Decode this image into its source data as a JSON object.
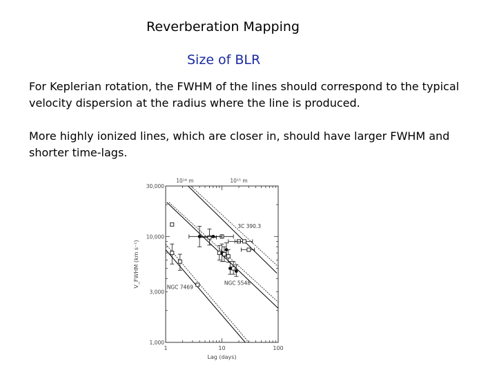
{
  "slide": {
    "title": "Reverberation Mapping",
    "subtitle": "Size of BLR",
    "paragraphs": [
      "For Keplerian rotation, the FWHM of the lines should correspond to the typical velocity dispersion at the radius where the line is produced.",
      "More highly ionized lines, which are closer in, should have larger FWHM and shorter time-lags."
    ]
  },
  "chart_data": {
    "type": "scatter",
    "xlabel": "Lag (days)",
    "ylabel": "V_FWHM (km s⁻¹)",
    "xscale": "log",
    "yscale": "log",
    "xlim": [
      1,
      100
    ],
    "ylim": [
      1000,
      30000
    ],
    "x_ticks": [
      "1",
      "10",
      "100"
    ],
    "y_ticks": [
      "1,000",
      "3,000",
      "10,000",
      "30,000"
    ],
    "top_axis_labels": [
      "10¹⁴ m",
      "10¹⁵ m"
    ],
    "annotations": [
      "3C 390.3",
      "NGC 5548",
      "NGC 7469"
    ],
    "series": [
      {
        "name": "3C 390.3",
        "marker": "open-square",
        "points": [
          {
            "x": 10,
            "y": 10000,
            "xerr": [
              4,
              6
            ]
          },
          {
            "x": 20,
            "y": 9000,
            "xerr": [
              7,
              6
            ]
          },
          {
            "x": 25,
            "y": 9000,
            "xerr": [
              8,
              10
            ]
          },
          {
            "x": 30,
            "y": 7500,
            "xerr": [
              8,
              8
            ]
          }
        ]
      },
      {
        "name": "NGC 5548",
        "marker": "mixed",
        "points": [
          {
            "x": 4,
            "y": 10000,
            "yerr": [
              2000,
              2500
            ],
            "xerr": [
              1.4,
              2
            ]
          },
          {
            "x": 6,
            "y": 9800,
            "yerr": [
              1500,
              2000
            ],
            "xerr": [
              2,
              2
            ]
          },
          {
            "x": 7,
            "y": 10000,
            "xerr": [
              3,
              3
            ]
          },
          {
            "x": 9,
            "y": 7000,
            "yerr": [
              1000,
              1200
            ]
          },
          {
            "x": 10,
            "y": 7000,
            "yerr": [
              1200,
              1500
            ]
          },
          {
            "x": 11,
            "y": 6800,
            "yerr": [
              1000,
              1200
            ]
          },
          {
            "x": 12,
            "y": 7500,
            "yerr": [
              1000,
              1200
            ]
          },
          {
            "x": 13,
            "y": 6500,
            "yerr": [
              800,
              1000
            ]
          },
          {
            "x": 14,
            "y": 5000,
            "yerr": [
              600,
              800
            ]
          },
          {
            "x": 16,
            "y": 5000,
            "yerr": [
              600,
              800
            ]
          },
          {
            "x": 18,
            "y": 4700,
            "yerr": [
              500,
              700
            ]
          }
        ]
      },
      {
        "name": "NGC 7469",
        "marker": "open-square",
        "points": [
          {
            "x": 1.3,
            "y": 13000
          },
          {
            "x": 1.3,
            "y": 7000,
            "yerr": [
              1500,
              1500
            ]
          },
          {
            "x": 1.8,
            "y": 5800,
            "yerr": [
              1000,
              1000
            ]
          },
          {
            "x": 3.7,
            "y": 3500
          }
        ]
      }
    ],
    "fit_lines": [
      {
        "name": "3C 390.3 line",
        "points": [
          [
            2.5,
            30000
          ],
          [
            95,
            4500
          ]
        ]
      },
      {
        "name": "3C 390.3 dashed",
        "points": [
          [
            2.8,
            30000
          ],
          [
            100,
            5200
          ]
        ]
      },
      {
        "name": "NGC 5548 line",
        "points": [
          [
            1.05,
            21000
          ],
          [
            100,
            2100
          ]
        ]
      },
      {
        "name": "NGC 5548 dashed",
        "points": [
          [
            1.15,
            21000
          ],
          [
            100,
            2400
          ]
        ]
      },
      {
        "name": "NGC 7469 line",
        "points": [
          [
            1,
            7500
          ],
          [
            26,
            1000
          ]
        ]
      },
      {
        "name": "NGC 7469 dashed",
        "points": [
          [
            1,
            8500
          ],
          [
            30,
            1000
          ]
        ]
      }
    ]
  }
}
